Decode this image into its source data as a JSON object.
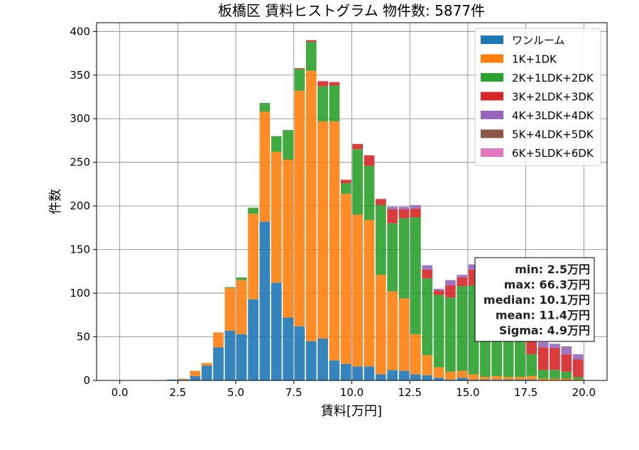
{
  "chart_data": {
    "type": "bar",
    "stacked": true,
    "title": "板橋区 賃料ヒストグラム  物件数: 5877件",
    "xlabel": "賃料[万円]",
    "ylabel": "件数",
    "xlim": [
      -1,
      21
    ],
    "ylim": [
      0,
      410
    ],
    "xticks": [
      0.0,
      2.5,
      5.0,
      7.5,
      10.0,
      12.5,
      15.0,
      17.5,
      20.0
    ],
    "xtick_labels": [
      "0.0",
      "2.5",
      "5.0",
      "7.5",
      "10.0",
      "12.5",
      "15.0",
      "17.5",
      "20.0"
    ],
    "yticks": [
      0,
      50,
      100,
      150,
      200,
      250,
      300,
      350,
      400
    ],
    "ytick_labels": [
      "0",
      "50",
      "100",
      "150",
      "200",
      "250",
      "300",
      "350",
      "400"
    ],
    "grid": true,
    "legend_position": "top-right",
    "bin_width": 0.5,
    "x": [
      2.0,
      2.5,
      3.0,
      3.5,
      4.0,
      4.5,
      5.0,
      5.5,
      6.0,
      6.5,
      7.0,
      7.5,
      8.0,
      8.5,
      9.0,
      9.5,
      10.0,
      10.5,
      11.0,
      11.5,
      12.0,
      12.5,
      13.0,
      13.5,
      14.0,
      14.5,
      15.0,
      15.5,
      16.0,
      16.5,
      17.0,
      17.5,
      18.0,
      18.5,
      19.0,
      19.5
    ],
    "series": [
      {
        "name": "ワンルーム",
        "color": "#1f77b4",
        "values": [
          1,
          1,
          5,
          17,
          38,
          57,
          53,
          93,
          182,
          112,
          72,
          62,
          45,
          48,
          23,
          19,
          16,
          16,
          7,
          12,
          11,
          7,
          6,
          3,
          1,
          3,
          1,
          1,
          1,
          1,
          1,
          1,
          0,
          0,
          0,
          0
        ]
      },
      {
        "name": "1K+1DK",
        "color": "#ff7f0e",
        "values": [
          0,
          1,
          6,
          3,
          17,
          49,
          62,
          98,
          126,
          150,
          181,
          270,
          310,
          249,
          274,
          195,
          174,
          168,
          114,
          90,
          83,
          46,
          23,
          12,
          9,
          8,
          6,
          3,
          4,
          3,
          3,
          4,
          2,
          2,
          2,
          1
        ]
      },
      {
        "name": "2K+1LDK+2DK",
        "color": "#2ca02c",
        "values": [
          0,
          0,
          0,
          0,
          0,
          1,
          3,
          7,
          10,
          18,
          34,
          25,
          33,
          40,
          41,
          12,
          75,
          62,
          80,
          78,
          92,
          134,
          88,
          83,
          85,
          97,
          102,
          92,
          98,
          75,
          46,
          25,
          10,
          10,
          8,
          3
        ]
      },
      {
        "name": "3K+2LDK+3DK",
        "color": "#d62728",
        "values": [
          0,
          0,
          0,
          0,
          0,
          0,
          0,
          0,
          0,
          0,
          0,
          1,
          2,
          6,
          4,
          4,
          6,
          12,
          7,
          16,
          10,
          10,
          10,
          5,
          14,
          10,
          18,
          16,
          18,
          27,
          25,
          30,
          26,
          25,
          20,
          20
        ]
      },
      {
        "name": "4K+3LDK+4DK",
        "color": "#9467bd",
        "values": [
          0,
          0,
          0,
          0,
          0,
          0,
          0,
          0,
          0,
          0,
          0,
          0,
          0,
          0,
          0,
          0,
          0,
          0,
          0,
          3,
          3,
          4,
          5,
          2,
          6,
          3,
          6,
          5,
          7,
          6,
          6,
          5,
          6,
          5,
          8,
          6
        ]
      },
      {
        "name": "5K+4LDK+5DK",
        "color": "#8c564b",
        "values": [
          0,
          0,
          0,
          0,
          0,
          0,
          0,
          0,
          0,
          0,
          0,
          0,
          0,
          0,
          0,
          0,
          0,
          0,
          0,
          0,
          0,
          0,
          0,
          0,
          0,
          0,
          0,
          0,
          0,
          0,
          0,
          0,
          0,
          0,
          1,
          0
        ]
      },
      {
        "name": "6K+5LDK+6DK",
        "color": "#e377c2",
        "values": [
          0,
          0,
          0,
          0,
          0,
          0,
          0,
          0,
          0,
          0,
          0,
          0,
          0,
          0,
          0,
          0,
          0,
          0,
          0,
          0,
          0,
          0,
          0,
          0,
          0,
          0,
          0,
          0,
          0,
          0,
          0,
          0,
          0,
          0,
          0,
          0
        ]
      }
    ],
    "stats": [
      "min: 2.5万円",
      "max: 66.3万円",
      "median: 10.1万円",
      "mean: 11.4万円",
      "Sigma: 4.9万円"
    ]
  }
}
